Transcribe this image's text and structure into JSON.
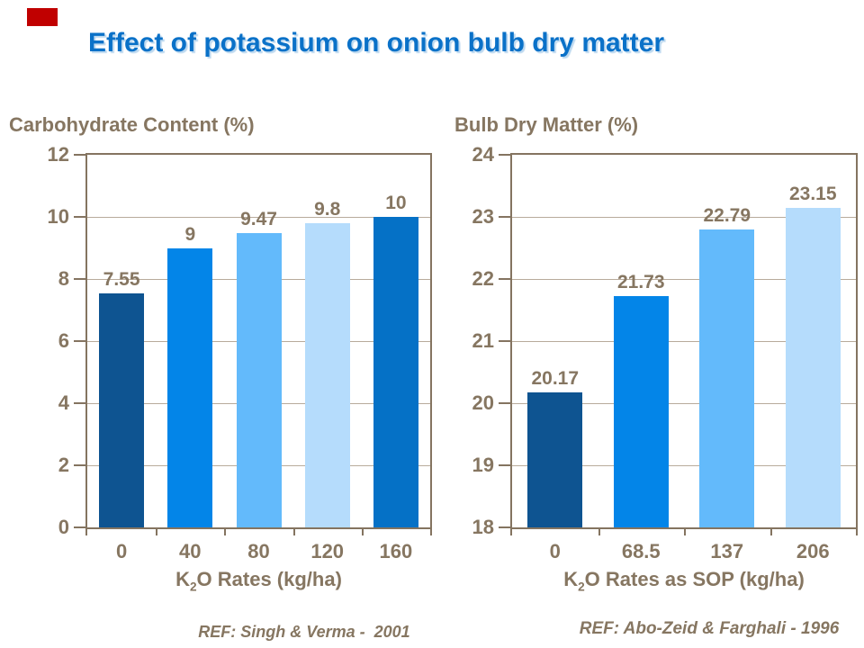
{
  "slide": {
    "title": "Effect of potassium on onion bulb dry matter"
  },
  "colors": {
    "title_blue": "#0a71c8",
    "text_brown": "#867661",
    "axis_border": "#847460",
    "gridline": "#b8ab9b",
    "corner_marker_red": "#c00000",
    "background": "#ffffff"
  },
  "chart_data": [
    {
      "type": "bar",
      "title": "Carbohydrate Content (%)",
      "categories": [
        "0",
        "40",
        "80",
        "120",
        "160"
      ],
      "values": [
        7.55,
        9,
        9.47,
        9.8,
        10
      ],
      "value_labels": [
        "7.55",
        "9",
        "9.47",
        "9.8",
        "10"
      ],
      "bar_colors": [
        "#0e5491",
        "#0385e8",
        "#63bafb",
        "#b5dcfc",
        "#0571c6"
      ],
      "xlabel": {
        "pre": "K",
        "sub": "2",
        "post": "O Rates (kg/ha)"
      },
      "ylabel": "",
      "ylim": [
        0,
        12
      ],
      "ytick_step": 2,
      "grid": true,
      "legend": "none",
      "ref": "REF: Singh & Verma -  2001"
    },
    {
      "type": "bar",
      "title": "Bulb Dry Matter (%)",
      "categories": [
        "0",
        "68.5",
        "137",
        "206"
      ],
      "values": [
        20.17,
        21.73,
        22.79,
        23.15
      ],
      "value_labels": [
        "20.17",
        "21.73",
        "22.79",
        "23.15"
      ],
      "bar_colors": [
        "#0e5491",
        "#0385e8",
        "#63bafb",
        "#b5dcfc"
      ],
      "xlabel": {
        "pre": "K",
        "sub": "2",
        "post": "O Rates as SOP (kg/ha)"
      },
      "ylabel": "",
      "ylim": [
        18,
        24
      ],
      "ytick_step": 1,
      "grid": true,
      "legend": "none",
      "ref": "REF: Abo-Zeid & Farghali - 1996"
    }
  ]
}
